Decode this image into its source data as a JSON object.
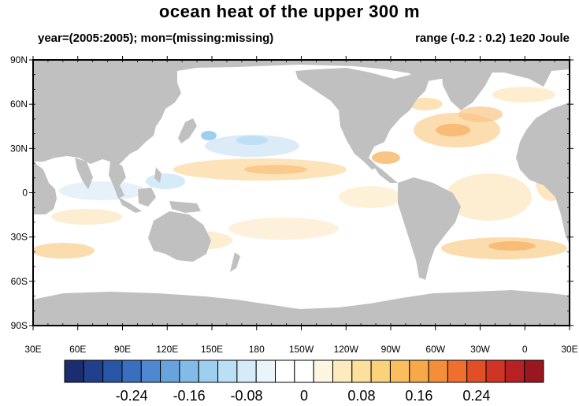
{
  "title": "ocean heat of the upper 300 m",
  "subtitle_left": "year=(2005:2005); mon=(missing:missing)",
  "subtitle_right": "range (-0.2 : 0.2) 1e20 Joule",
  "colors": {
    "land": "#c0c0c0",
    "ocean_neutral": "#ffffff",
    "frame": "#000000"
  },
  "map": {
    "lon_labels": [
      "30E",
      "60E",
      "90E",
      "120E",
      "150E",
      "180",
      "150W",
      "120W",
      "90W",
      "60W",
      "30W",
      "0",
      "30E"
    ],
    "lat_labels": [
      "90N",
      "60N",
      "30N",
      "0",
      "30S",
      "60S",
      "90S"
    ]
  },
  "colorbar": {
    "colors": [
      "#1a2d6e",
      "#213f8c",
      "#2a56a8",
      "#3a6fbf",
      "#4f88d0",
      "#68a3dd",
      "#82bbe8",
      "#9dd0f0",
      "#bbe0f5",
      "#d5ecf8",
      "#eaf5fb",
      "#ffffff",
      "#ffffff",
      "#fef6e1",
      "#fdebbf",
      "#fce09c",
      "#fbd27c",
      "#f9bf5f",
      "#f7a849",
      "#f58e3a",
      "#ee6f2e",
      "#e24f27",
      "#d03424",
      "#b82124",
      "#9a1620"
    ],
    "tick_labels": [
      "-0.24",
      "-0.16",
      "-0.08",
      "0",
      "0.08",
      "0.16",
      "0.24"
    ]
  }
}
